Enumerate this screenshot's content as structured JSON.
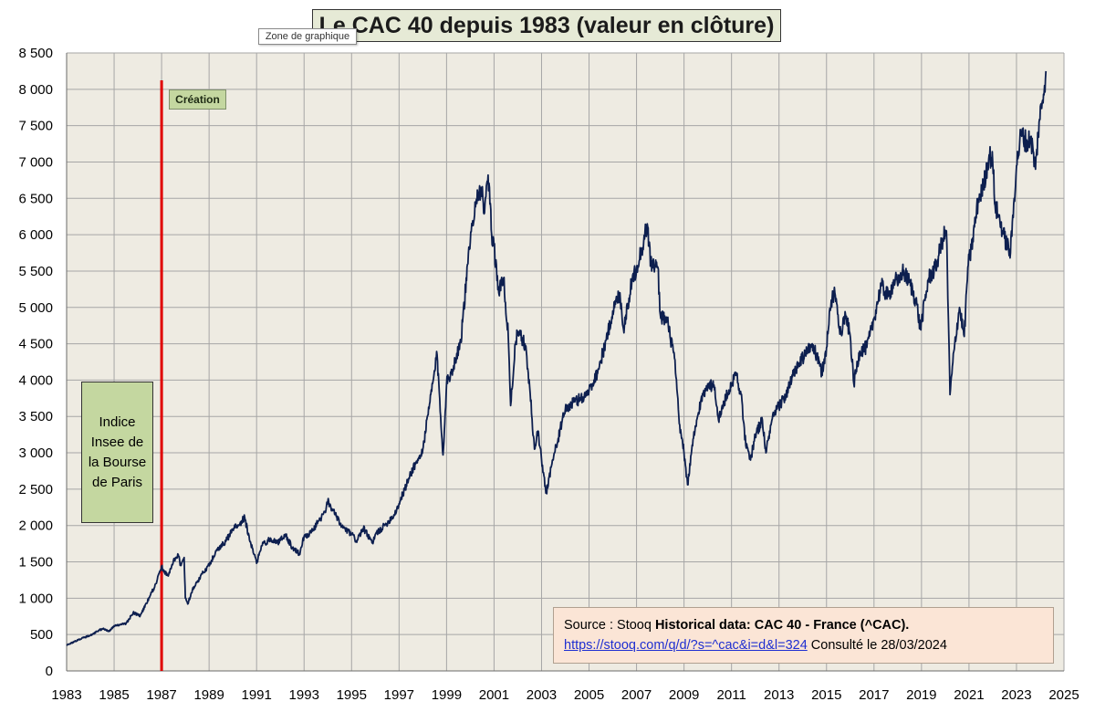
{
  "chart_data": {
    "type": "line",
    "title": "Le CAC 40 depuis 1983 (valeur en clôture)",
    "xlim": [
      1983,
      2025
    ],
    "ylim": [
      0,
      8500
    ],
    "x_ticks": [
      "1983",
      "1985",
      "1987",
      "1989",
      "1991",
      "1993",
      "1995",
      "1997",
      "1999",
      "2001",
      "2003",
      "2005",
      "2007",
      "2009",
      "2011",
      "2013",
      "2015",
      "2017",
      "2019",
      "2021",
      "2023",
      "2025"
    ],
    "y_ticks": [
      {
        "value": 0,
        "label": "0"
      },
      {
        "value": 500,
        "label": "500"
      },
      {
        "value": 1000,
        "label": "1 000"
      },
      {
        "value": 1500,
        "label": "1 500"
      },
      {
        "value": 2000,
        "label": "2 000"
      },
      {
        "value": 2500,
        "label": "2 500"
      },
      {
        "value": 3000,
        "label": "3 000"
      },
      {
        "value": 3500,
        "label": "3 500"
      },
      {
        "value": 4000,
        "label": "4 000"
      },
      {
        "value": 4500,
        "label": "4 500"
      },
      {
        "value": 5000,
        "label": "5 000"
      },
      {
        "value": 5500,
        "label": "5 500"
      },
      {
        "value": 6000,
        "label": "6 000"
      },
      {
        "value": 6500,
        "label": "6 500"
      },
      {
        "value": 7000,
        "label": "7 000"
      },
      {
        "value": 7500,
        "label": "7 500"
      },
      {
        "value": 8000,
        "label": "8 000"
      },
      {
        "value": 8500,
        "label": "8 500"
      }
    ],
    "grid": true,
    "series": [
      {
        "points": [
          [
            1983.0,
            350
          ],
          [
            1983.5,
            430
          ],
          [
            1984.0,
            490
          ],
          [
            1984.5,
            580
          ],
          [
            1984.8,
            550
          ],
          [
            1985.0,
            620
          ],
          [
            1985.5,
            650
          ],
          [
            1985.8,
            800
          ],
          [
            1986.1,
            760
          ],
          [
            1986.5,
            1020
          ],
          [
            1986.8,
            1230
          ],
          [
            1987.0,
            1440
          ],
          [
            1987.1,
            1360
          ],
          [
            1987.3,
            1330
          ],
          [
            1987.5,
            1520
          ],
          [
            1987.7,
            1600
          ],
          [
            1987.8,
            1450
          ],
          [
            1987.95,
            1560
          ],
          [
            1988.0,
            1000
          ],
          [
            1988.1,
            920
          ],
          [
            1988.3,
            1120
          ],
          [
            1988.6,
            1280
          ],
          [
            1988.9,
            1420
          ],
          [
            1989.0,
            1460
          ],
          [
            1989.3,
            1650
          ],
          [
            1989.7,
            1780
          ],
          [
            1990.0,
            1950
          ],
          [
            1990.3,
            2030
          ],
          [
            1990.5,
            2110
          ],
          [
            1990.7,
            1800
          ],
          [
            1990.9,
            1600
          ],
          [
            1991.0,
            1480
          ],
          [
            1991.2,
            1720
          ],
          [
            1991.6,
            1820
          ],
          [
            1991.9,
            1760
          ],
          [
            1992.2,
            1880
          ],
          [
            1992.5,
            1700
          ],
          [
            1992.8,
            1610
          ],
          [
            1993.0,
            1850
          ],
          [
            1993.3,
            1900
          ],
          [
            1993.6,
            2060
          ],
          [
            1993.9,
            2180
          ],
          [
            1994.0,
            2340
          ],
          [
            1994.3,
            2150
          ],
          [
            1994.6,
            1980
          ],
          [
            1995.0,
            1880
          ],
          [
            1995.2,
            1790
          ],
          [
            1995.5,
            1960
          ],
          [
            1995.9,
            1750
          ],
          [
            1996.0,
            1880
          ],
          [
            1996.4,
            2000
          ],
          [
            1996.8,
            2150
          ],
          [
            1997.0,
            2300
          ],
          [
            1997.3,
            2550
          ],
          [
            1997.6,
            2800
          ],
          [
            1997.9,
            2950
          ],
          [
            1998.0,
            3050
          ],
          [
            1998.3,
            3700
          ],
          [
            1998.6,
            4350
          ],
          [
            1998.75,
            3500
          ],
          [
            1998.85,
            2970
          ],
          [
            1999.0,
            3950
          ],
          [
            1999.3,
            4200
          ],
          [
            1999.6,
            4550
          ],
          [
            1999.9,
            5600
          ],
          [
            2000.0,
            5900
          ],
          [
            2000.2,
            6450
          ],
          [
            2000.45,
            6650
          ],
          [
            2000.6,
            6300
          ],
          [
            2000.75,
            6820
          ],
          [
            2000.9,
            6000
          ],
          [
            2001.0,
            5850
          ],
          [
            2001.2,
            5200
          ],
          [
            2001.4,
            5400
          ],
          [
            2001.6,
            4600
          ],
          [
            2001.7,
            3650
          ],
          [
            2001.9,
            4500
          ],
          [
            2002.0,
            4650
          ],
          [
            2002.3,
            4500
          ],
          [
            2002.5,
            3900
          ],
          [
            2002.7,
            3050
          ],
          [
            2002.85,
            3300
          ],
          [
            2003.0,
            2900
          ],
          [
            2003.2,
            2450
          ],
          [
            2003.4,
            2800
          ],
          [
            2003.7,
            3200
          ],
          [
            2004.0,
            3600
          ],
          [
            2004.4,
            3700
          ],
          [
            2004.8,
            3780
          ],
          [
            2005.0,
            3850
          ],
          [
            2005.4,
            4150
          ],
          [
            2005.8,
            4650
          ],
          [
            2006.0,
            4950
          ],
          [
            2006.3,
            5200
          ],
          [
            2006.45,
            4700
          ],
          [
            2006.8,
            5350
          ],
          [
            2007.0,
            5550
          ],
          [
            2007.3,
            5900
          ],
          [
            2007.45,
            6150
          ],
          [
            2007.6,
            5600
          ],
          [
            2007.9,
            5550
          ],
          [
            2008.0,
            4900
          ],
          [
            2008.3,
            4800
          ],
          [
            2008.6,
            4300
          ],
          [
            2008.8,
            3400
          ],
          [
            2008.95,
            3100
          ],
          [
            2009.0,
            3000
          ],
          [
            2009.15,
            2560
          ],
          [
            2009.4,
            3200
          ],
          [
            2009.7,
            3700
          ],
          [
            2010.0,
            3950
          ],
          [
            2010.3,
            3900
          ],
          [
            2010.45,
            3450
          ],
          [
            2010.7,
            3700
          ],
          [
            2011.0,
            3950
          ],
          [
            2011.2,
            4100
          ],
          [
            2011.4,
            3800
          ],
          [
            2011.6,
            3100
          ],
          [
            2011.8,
            2900
          ],
          [
            2012.0,
            3250
          ],
          [
            2012.3,
            3450
          ],
          [
            2012.45,
            3000
          ],
          [
            2012.7,
            3450
          ],
          [
            2013.0,
            3650
          ],
          [
            2013.3,
            3800
          ],
          [
            2013.7,
            4150
          ],
          [
            2014.0,
            4300
          ],
          [
            2014.4,
            4500
          ],
          [
            2014.6,
            4300
          ],
          [
            2014.8,
            4100
          ],
          [
            2015.0,
            4450
          ],
          [
            2015.2,
            5100
          ],
          [
            2015.35,
            5200
          ],
          [
            2015.6,
            4650
          ],
          [
            2015.8,
            4900
          ],
          [
            2016.0,
            4600
          ],
          [
            2016.15,
            3950
          ],
          [
            2016.4,
            4400
          ],
          [
            2016.7,
            4450
          ],
          [
            2016.9,
            4700
          ],
          [
            2017.0,
            4850
          ],
          [
            2017.3,
            5300
          ],
          [
            2017.6,
            5150
          ],
          [
            2017.9,
            5400
          ],
          [
            2018.0,
            5300
          ],
          [
            2018.2,
            5500
          ],
          [
            2018.5,
            5350
          ],
          [
            2018.8,
            5050
          ],
          [
            2018.95,
            4700
          ],
          [
            2019.0,
            4800
          ],
          [
            2019.3,
            5400
          ],
          [
            2019.6,
            5550
          ],
          [
            2019.9,
            5950
          ],
          [
            2020.05,
            6050
          ],
          [
            2020.15,
            4600
          ],
          [
            2020.2,
            3800
          ],
          [
            2020.4,
            4500
          ],
          [
            2020.6,
            5000
          ],
          [
            2020.8,
            4600
          ],
          [
            2020.95,
            5550
          ],
          [
            2021.1,
            5800
          ],
          [
            2021.4,
            6500
          ],
          [
            2021.6,
            6650
          ],
          [
            2021.85,
            7100
          ],
          [
            2022.0,
            7000
          ],
          [
            2022.1,
            6400
          ],
          [
            2022.3,
            6200
          ],
          [
            2022.5,
            5950
          ],
          [
            2022.75,
            5750
          ],
          [
            2022.9,
            6500
          ],
          [
            2023.0,
            6950
          ],
          [
            2023.2,
            7400
          ],
          [
            2023.45,
            7250
          ],
          [
            2023.6,
            7350
          ],
          [
            2023.8,
            6900
          ],
          [
            2023.95,
            7550
          ],
          [
            2024.1,
            7850
          ],
          [
            2024.24,
            8250
          ]
        ]
      }
    ],
    "annotations": {
      "creation_label": "Création",
      "creation_year": 1987,
      "insee_label": "Indice Insee de la Bourse de Paris"
    }
  },
  "tooltip": "Zone de graphique",
  "source": {
    "prefix": "Source : Stooq ",
    "bold": "Historical data: CAC 40 - France (^CAC).",
    "link": "https://stooq.com/q/d/?s=^cac&i=d&l=324",
    "suffix": " Consulté le 28/03/2024"
  },
  "colors": {
    "plot_background": "#eeebe2",
    "gridline": "#a6a6a6",
    "series_line": "#0d1f4f",
    "creation_line": "#e00000",
    "annotation_fill": "#c4d7a0",
    "title_fill": "#e6ead6",
    "source_fill": "#fbe5d6"
  }
}
